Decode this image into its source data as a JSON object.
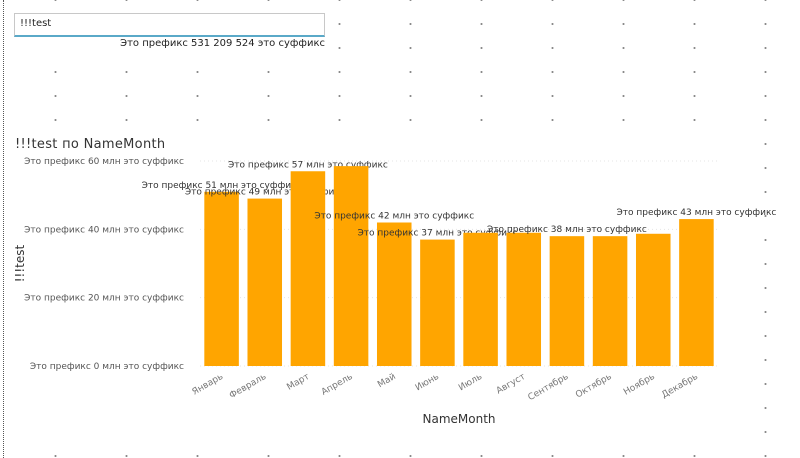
{
  "card": {
    "title": "!!!test",
    "value": "Это префикс 531 209 524 это суффикс"
  },
  "chart_data": {
    "type": "bar",
    "title": "!!!test по NameMonth",
    "xlabel": "NameMonth",
    "ylabel": "!!!test",
    "ylim": [
      0,
      60
    ],
    "y_ticks": [
      0,
      20,
      40,
      60
    ],
    "y_tick_labels": [
      "Это префикс 0 млн это суффикс",
      "Это префикс 20 млн это суффикс",
      "Это префикс 40 млн это суффикс",
      "Это префикс 60 млн это суффикс"
    ],
    "categories": [
      "Январь",
      "Февраль",
      "Март",
      "Апрель",
      "Май",
      "Июнь",
      "Июль",
      "Август",
      "Сентябрь",
      "Октябрь",
      "Ноябрь",
      "Декабрь"
    ],
    "values": [
      51,
      49,
      57,
      58.5,
      42,
      37,
      39,
      39,
      38,
      38,
      38.7,
      43
    ],
    "data_labels": [
      "Это префикс 51 млн это суффикс",
      "Это префикс 49 млн это суффикс",
      "Это префикс 57 млн это суффикс",
      "",
      "Это префикс 42 млн это суффикс",
      "Это префикс 37 млн это суффикс",
      "",
      "",
      "Это префикс 38 млн это суффикс",
      "",
      "",
      "Это префикс 43 млн это суффикс"
    ],
    "bar_color": "#FFA500",
    "grid": true
  }
}
